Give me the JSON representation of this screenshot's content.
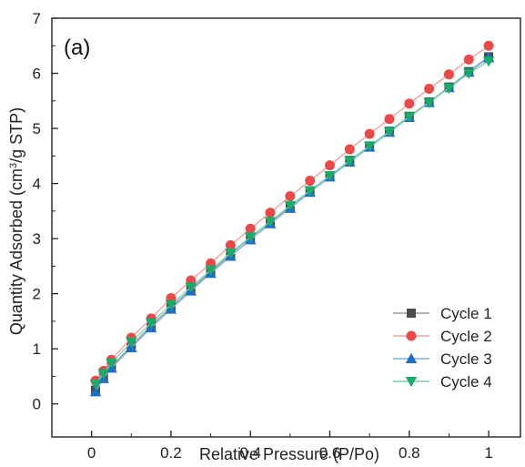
{
  "chart_data": {
    "type": "line",
    "panel_label": "(a)",
    "xlabel": "Relative Pressure (P/Po)",
    "ylabel_prefix": "Quantity Adsorbed (cm",
    "ylabel_sup": "3",
    "ylabel_suffix": "/g STP)",
    "xlim": [
      -0.1,
      1.08
    ],
    "ylim": [
      -0.6,
      7
    ],
    "x_ticks": [
      0,
      0.2,
      0.4,
      0.6,
      0.8,
      1
    ],
    "x_tick_labels": [
      "0",
      "0.2",
      "0.4",
      "0.6",
      "0.8",
      "1"
    ],
    "y_ticks": [
      0,
      1,
      2,
      3,
      4,
      5,
      6,
      7
    ],
    "y_tick_labels": [
      "0",
      "1",
      "2",
      "3",
      "4",
      "5",
      "6",
      "7"
    ],
    "legend_position": "bottom-right",
    "x": [
      0.01,
      0.03,
      0.05,
      0.1,
      0.15,
      0.2,
      0.25,
      0.3,
      0.35,
      0.4,
      0.45,
      0.5,
      0.55,
      0.6,
      0.65,
      0.7,
      0.75,
      0.8,
      0.85,
      0.9,
      0.95,
      1.0
    ],
    "series": [
      {
        "name": "Cycle 1",
        "marker": "square",
        "color": "#4a4a4a",
        "line_color": "#9a9a9a",
        "values": [
          0.25,
          0.48,
          0.68,
          1.05,
          1.42,
          1.75,
          2.08,
          2.4,
          2.72,
          3.02,
          3.3,
          3.58,
          3.87,
          4.14,
          4.42,
          4.68,
          4.95,
          5.22,
          5.48,
          5.75,
          6.03,
          6.3
        ]
      },
      {
        "name": "Cycle 2",
        "marker": "circle",
        "color": "#e84a4a",
        "line_color": "#f2a0a0",
        "values": [
          0.42,
          0.6,
          0.8,
          1.2,
          1.55,
          1.92,
          2.24,
          2.55,
          2.88,
          3.18,
          3.47,
          3.77,
          4.05,
          4.33,
          4.62,
          4.9,
          5.17,
          5.45,
          5.72,
          5.98,
          6.25,
          6.5
        ]
      },
      {
        "name": "Cycle 3",
        "marker": "triangle-up",
        "color": "#1f6fc4",
        "line_color": "#7fb2e6",
        "values": [
          0.22,
          0.46,
          0.65,
          1.02,
          1.38,
          1.72,
          2.05,
          2.37,
          2.68,
          2.98,
          3.27,
          3.55,
          3.84,
          4.12,
          4.39,
          4.66,
          4.93,
          5.2,
          5.47,
          5.74,
          6.02,
          6.28
        ]
      },
      {
        "name": "Cycle 4",
        "marker": "triangle-down",
        "color": "#1aaa6a",
        "line_color": "#7fd6ae",
        "values": [
          0.36,
          0.55,
          0.74,
          1.12,
          1.47,
          1.8,
          2.12,
          2.43,
          2.74,
          3.03,
          3.31,
          3.6,
          3.87,
          4.14,
          4.41,
          4.68,
          4.94,
          5.21,
          5.47,
          5.73,
          6.0,
          6.22
        ]
      }
    ]
  }
}
